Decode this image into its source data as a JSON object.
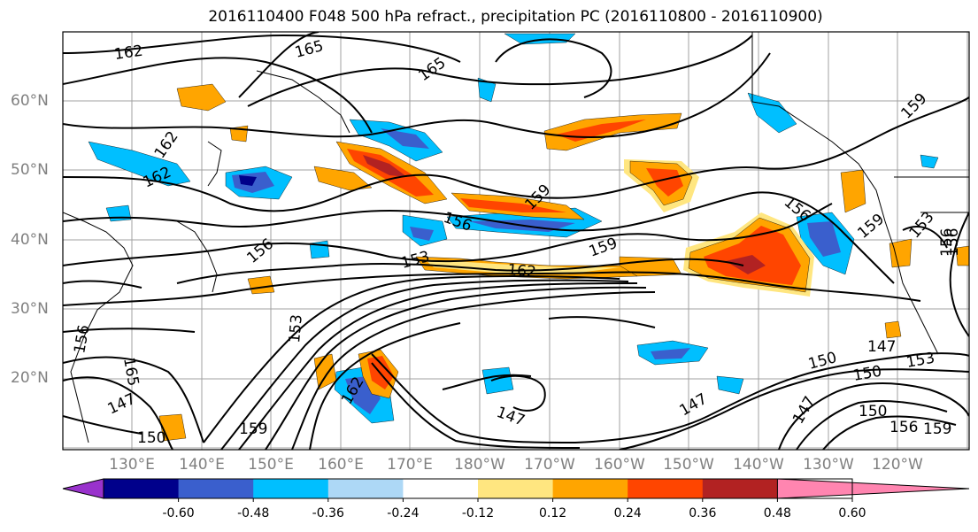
{
  "title": "2016110400 F048 500 hPa refract., precipitation PC (2016110800 - 2016110900)",
  "latitude_labels": [
    "60°N",
    "50°N",
    "40°N",
    "30°N",
    "20°N"
  ],
  "longitude_labels": [
    "130°E",
    "140°E",
    "150°E",
    "160°E",
    "170°E",
    "180°W",
    "170°W",
    "160°W",
    "150°W",
    "140°W",
    "130°W",
    "120°W"
  ],
  "contour_labels": [
    "162",
    "165",
    "165",
    "162",
    "162",
    "156",
    "159",
    "156",
    "159",
    "153",
    "162",
    "159",
    "156",
    "156",
    "153",
    "159",
    "156",
    "153",
    "165",
    "162",
    "147",
    "150",
    "159",
    "147",
    "147",
    "150",
    "150",
    "153",
    "147",
    "150",
    "147",
    "156",
    "159",
    "156"
  ],
  "colorbar": {
    "colors": [
      "#9932cc",
      "#00008b",
      "#3a5fcd",
      "#00bfff",
      "#add8f6",
      "#ffffff",
      "#ffe680",
      "#ffa500",
      "#ff4500",
      "#b22222",
      "#ff85b0"
    ],
    "tick_labels": [
      "-0.60",
      "-0.48",
      "-0.36",
      "-0.24",
      "-0.12",
      "0.12",
      "0.24",
      "0.36",
      "0.48",
      "0.60"
    ]
  }
}
